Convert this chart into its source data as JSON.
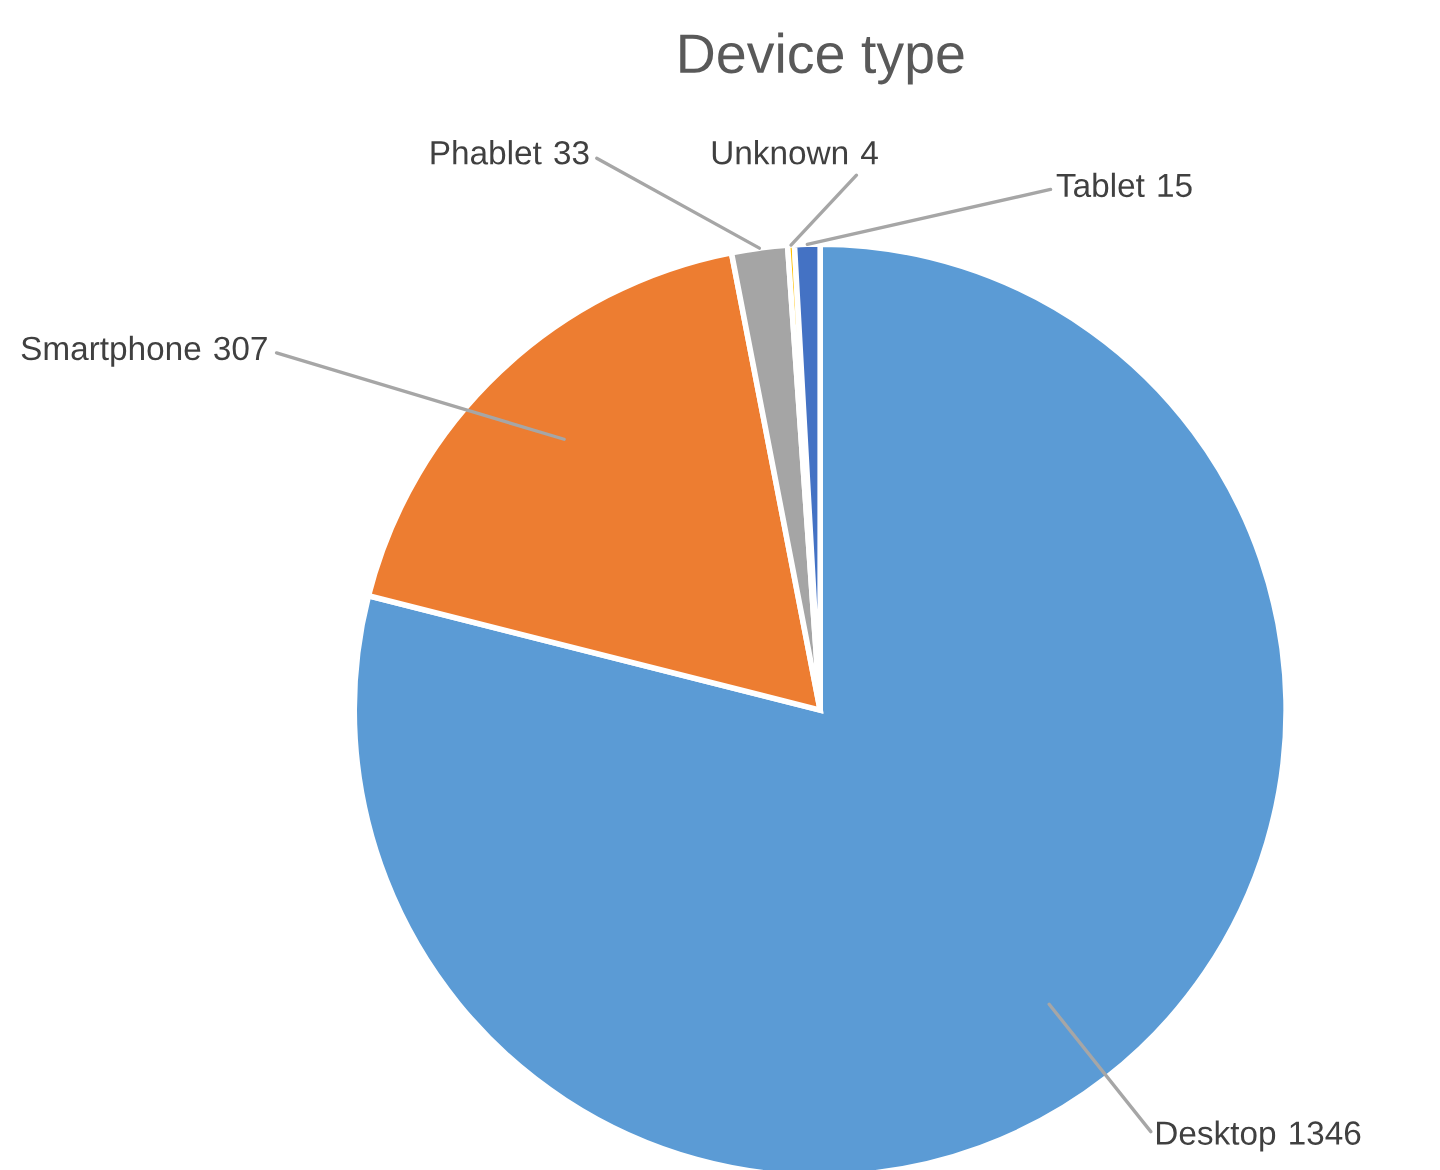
{
  "chart_data": {
    "type": "pie",
    "title": "Device type",
    "categories": [
      "Desktop",
      "Smartphone",
      "Phablet",
      "Unknown",
      "Tablet"
    ],
    "values": [
      1346,
      307,
      33,
      4,
      15
    ],
    "colors": [
      "#5b9bd5",
      "#ed7d31",
      "#a5a5a5",
      "#ffc000",
      "#4472c4"
    ],
    "data_labels": true,
    "legend": false
  }
}
